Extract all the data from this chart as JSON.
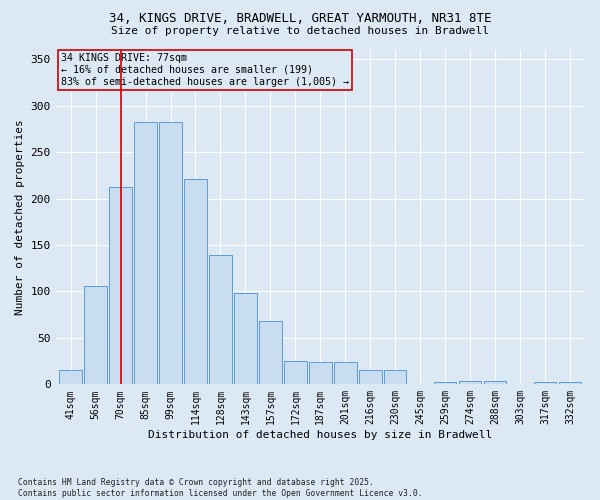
{
  "title_line1": "34, KINGS DRIVE, BRADWELL, GREAT YARMOUTH, NR31 8TE",
  "title_line2": "Size of property relative to detached houses in Bradwell",
  "xlabel": "Distribution of detached houses by size in Bradwell",
  "ylabel": "Number of detached properties",
  "bar_labels": [
    "41sqm",
    "56sqm",
    "70sqm",
    "85sqm",
    "99sqm",
    "114sqm",
    "128sqm",
    "143sqm",
    "157sqm",
    "172sqm",
    "187sqm",
    "201sqm",
    "216sqm",
    "230sqm",
    "245sqm",
    "259sqm",
    "274sqm",
    "288sqm",
    "303sqm",
    "317sqm",
    "332sqm"
  ],
  "bar_values": [
    15,
    106,
    213,
    283,
    283,
    221,
    139,
    98,
    68,
    25,
    24,
    24,
    15,
    15,
    0,
    3,
    4,
    4,
    0,
    3,
    2
  ],
  "bar_color": "#c9ddf0",
  "bar_edge_color": "#5b9bd5",
  "ylim": [
    0,
    360
  ],
  "yticks": [
    0,
    50,
    100,
    150,
    200,
    250,
    300,
    350
  ],
  "vline_x": 2.0,
  "vline_color": "#cc0000",
  "annotation_title": "34 KINGS DRIVE: 77sqm",
  "annotation_line2": "← 16% of detached houses are smaller (199)",
  "annotation_line3": "83% of semi-detached houses are larger (1,005) →",
  "annotation_box_color": "#cc0000",
  "background_color": "#dce9f5",
  "plot_bg_color": "#dce9f5",
  "footer_line1": "Contains HM Land Registry data © Crown copyright and database right 2025.",
  "footer_line2": "Contains public sector information licensed under the Open Government Licence v3.0."
}
